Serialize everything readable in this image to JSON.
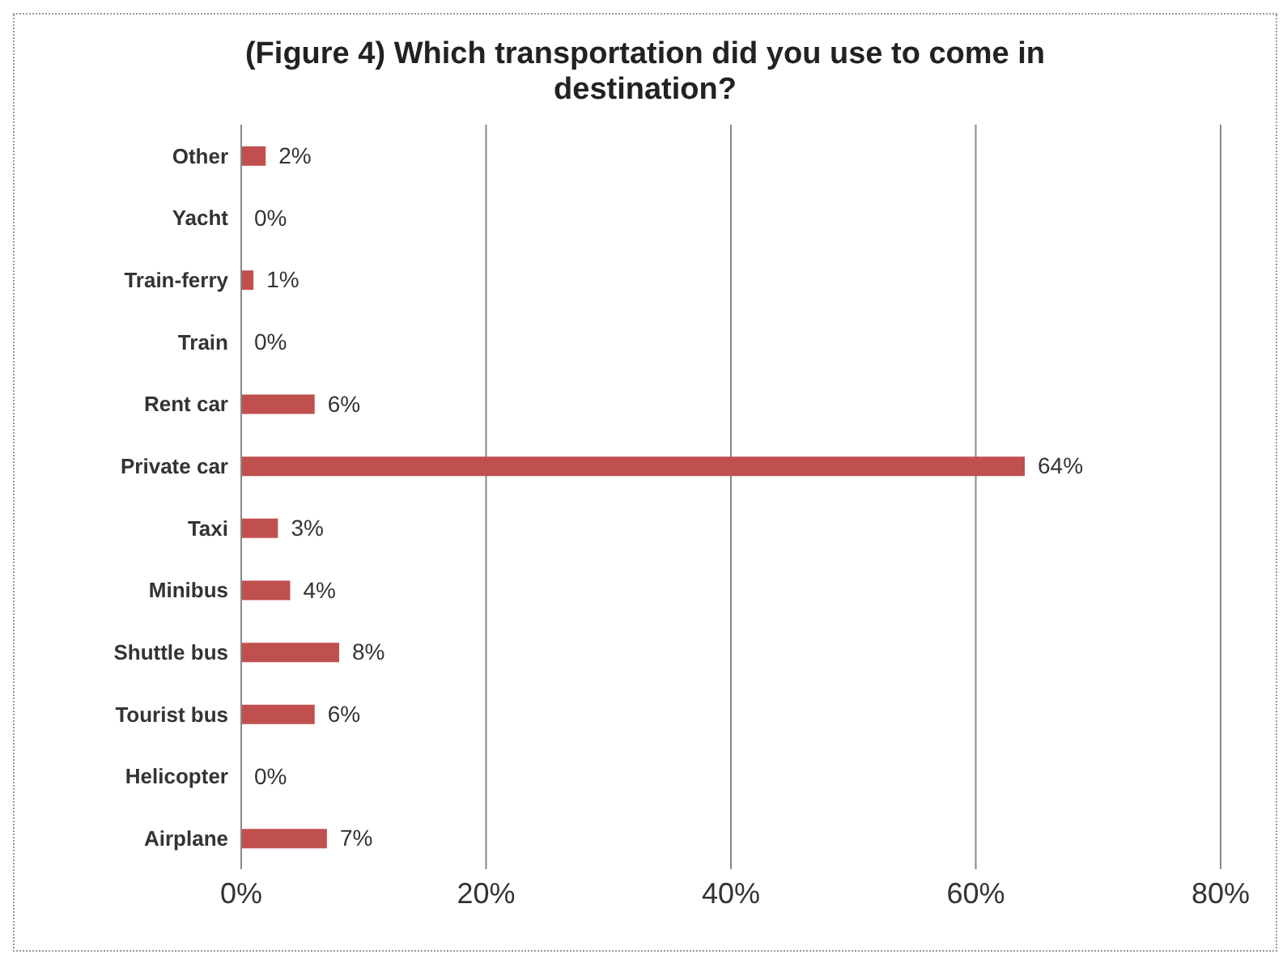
{
  "chart_data": {
    "type": "bar",
    "orientation": "horizontal",
    "title": "(Figure 4) Which transportation did you use to come in destination?",
    "categories": [
      "Other",
      "Yacht",
      "Train-ferry",
      "Train",
      "Rent car",
      "Private car",
      "Taxi",
      "Minibus",
      "Shuttle bus",
      "Tourist bus",
      "Helicopter",
      "Airplane"
    ],
    "values": [
      2,
      0,
      1,
      0,
      6,
      64,
      3,
      4,
      8,
      6,
      0,
      7
    ],
    "value_labels": [
      "2%",
      "0%",
      "1%",
      "0%",
      "6%",
      "64%",
      "3%",
      "4%",
      "8%",
      "6%",
      "0%",
      "7%"
    ],
    "color": "#c0504d",
    "xlim": [
      0,
      80
    ],
    "xticks": [
      {
        "value": 0,
        "label": "0%"
      },
      {
        "value": 20,
        "label": "20%"
      },
      {
        "value": 40,
        "label": "40%"
      },
      {
        "value": 60,
        "label": "60%"
      },
      {
        "value": 80,
        "label": "80%"
      }
    ],
    "grid": "x",
    "legend": false
  }
}
